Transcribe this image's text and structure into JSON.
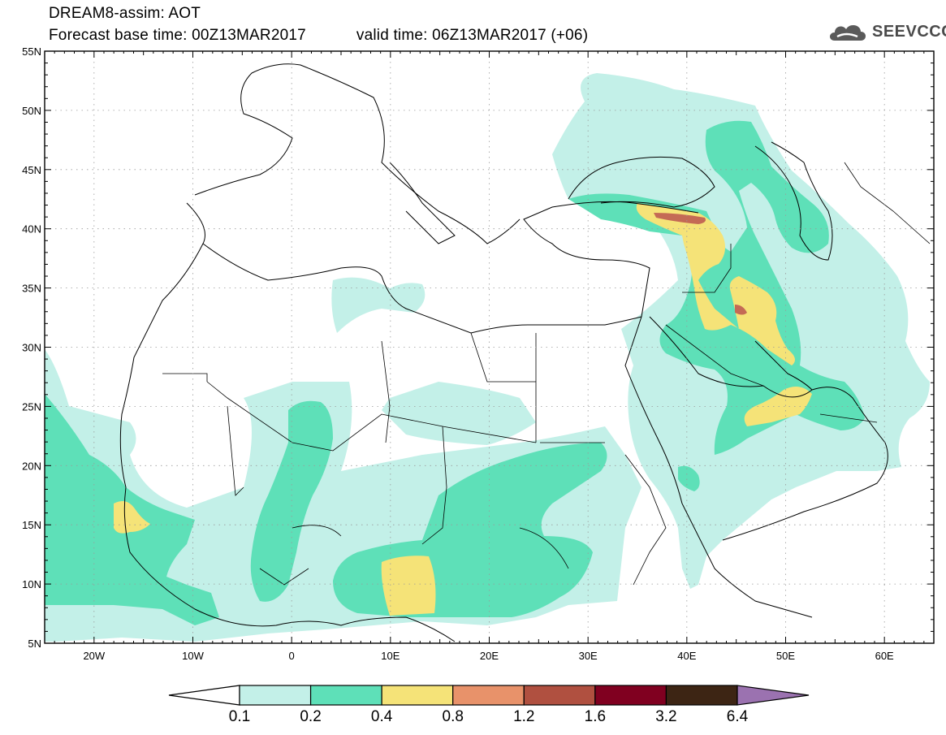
{
  "header": {
    "title": "DREAM8-assim: AOT",
    "base_time": "Forecast base time: 00Z13MAR2017",
    "valid_time": "valid time: 06Z13MAR2017 (+06)"
  },
  "logo": {
    "text": "SEEVCCC",
    "icon": "cloud-icon",
    "color": "#4a4a4a"
  },
  "map": {
    "lon_range": [
      -25,
      65
    ],
    "lat_range": [
      5,
      55
    ],
    "lat_ticks": [
      "5N",
      "10N",
      "15N",
      "20N",
      "25N",
      "30N",
      "35N",
      "40N",
      "45N",
      "50N",
      "55N"
    ],
    "lon_ticks": [
      "20W",
      "10W",
      "0",
      "10E",
      "20E",
      "30E",
      "40E",
      "50E",
      "60E"
    ],
    "grid": "dotted"
  },
  "legend": {
    "labels": [
      "0.1",
      "0.2",
      "0.4",
      "0.8",
      "1.2",
      "1.6",
      "3.2",
      "6.4"
    ],
    "colors": {
      "c1": "#c3f0e8",
      "c2": "#5ee0b8",
      "c3": "#f5e378",
      "c4": "#e8926a",
      "c5": "#b05040",
      "c6": "#800020",
      "c7": "#3d2514",
      "c8": "#9b72b0"
    }
  }
}
